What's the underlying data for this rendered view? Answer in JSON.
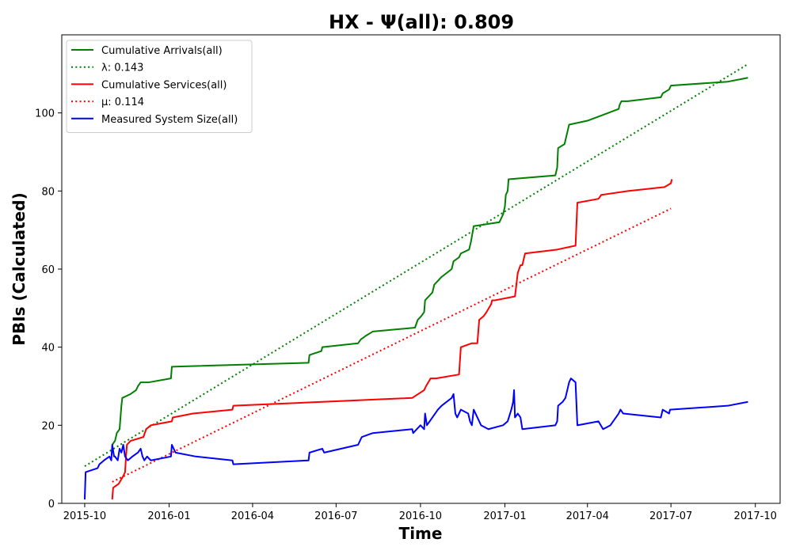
{
  "chart_data": {
    "type": "line",
    "title": "HX -  Ψ(all): 0.809",
    "xlabel": "Time",
    "ylabel": "PBIs (Calculated)",
    "xlim": [
      "2015-09-06",
      "2017-10-28"
    ],
    "ylim": [
      0,
      120
    ],
    "x_ticks": [
      "2015-10",
      "2016-01",
      "2016-04",
      "2016-07",
      "2016-10",
      "2017-01",
      "2017-04",
      "2017-07",
      "2017-10"
    ],
    "y_ticks": [
      0,
      20,
      40,
      60,
      80,
      100
    ],
    "grid": false,
    "legend_position": "top-left",
    "series": [
      {
        "name": "Cumulative Arrivals(all)",
        "color": "#008000",
        "style": "solid",
        "points": [
          [
            "2015-10-31",
            15
          ],
          [
            "2015-11-03",
            16
          ],
          [
            "2015-11-05",
            18
          ],
          [
            "2015-11-08",
            19
          ],
          [
            "2015-11-09",
            22
          ],
          [
            "2015-11-10",
            25
          ],
          [
            "2015-11-11",
            27
          ],
          [
            "2015-11-20",
            28
          ],
          [
            "2015-11-26",
            29
          ],
          [
            "2015-11-28",
            30
          ],
          [
            "2015-12-01",
            31
          ],
          [
            "2015-12-10",
            31
          ],
          [
            "2016-01-03",
            32
          ],
          [
            "2016-01-04",
            35
          ],
          [
            "2016-06-01",
            36
          ],
          [
            "2016-06-02",
            38
          ],
          [
            "2016-06-15",
            39
          ],
          [
            "2016-06-16",
            40
          ],
          [
            "2016-07-25",
            41
          ],
          [
            "2016-07-28",
            42
          ],
          [
            "2016-08-03",
            43
          ],
          [
            "2016-08-10",
            44
          ],
          [
            "2016-09-25",
            45
          ],
          [
            "2016-09-28",
            47
          ],
          [
            "2016-10-02",
            48
          ],
          [
            "2016-10-05",
            49
          ],
          [
            "2016-10-06",
            52
          ],
          [
            "2016-10-14",
            54
          ],
          [
            "2016-10-16",
            56
          ],
          [
            "2016-10-20",
            57
          ],
          [
            "2016-10-24",
            58
          ],
          [
            "2016-11-04",
            60
          ],
          [
            "2016-11-06",
            62
          ],
          [
            "2016-11-12",
            63
          ],
          [
            "2016-11-14",
            64
          ],
          [
            "2016-11-23",
            65
          ],
          [
            "2016-11-25",
            67
          ],
          [
            "2016-11-28",
            71
          ],
          [
            "2016-12-26",
            72
          ],
          [
            "2016-12-30",
            74
          ],
          [
            "2017-01-01",
            76
          ],
          [
            "2017-01-02",
            79
          ],
          [
            "2017-01-04",
            80
          ],
          [
            "2017-01-05",
            83
          ],
          [
            "2017-02-25",
            84
          ],
          [
            "2017-02-27",
            86
          ],
          [
            "2017-02-28",
            91
          ],
          [
            "2017-03-07",
            92
          ],
          [
            "2017-03-09",
            94
          ],
          [
            "2017-03-10",
            95
          ],
          [
            "2017-03-12",
            97
          ],
          [
            "2017-04-01",
            98
          ],
          [
            "2017-05-05",
            101
          ],
          [
            "2017-05-06",
            102
          ],
          [
            "2017-05-08",
            103
          ],
          [
            "2017-05-15",
            103
          ],
          [
            "2017-06-20",
            104
          ],
          [
            "2017-06-22",
            105
          ],
          [
            "2017-06-29",
            106
          ],
          [
            "2017-07-01",
            107
          ],
          [
            "2017-09-01",
            108
          ],
          [
            "2017-09-23",
            109
          ]
        ]
      },
      {
        "name": "λ: 0.143",
        "color": "#008000",
        "style": "dotted",
        "points": [
          [
            "2015-10-01",
            9.5
          ],
          [
            "2017-09-23",
            112.5
          ]
        ]
      },
      {
        "name": "Cumulative Services(all)",
        "color": "#ff0000",
        "style": "solid",
        "points": [
          [
            "2015-10-31",
            1
          ],
          [
            "2015-11-01",
            4
          ],
          [
            "2015-11-07",
            5
          ],
          [
            "2015-11-12",
            7
          ],
          [
            "2015-11-14",
            8
          ],
          [
            "2015-11-15",
            12
          ],
          [
            "2015-11-16",
            15
          ],
          [
            "2015-11-20",
            16
          ],
          [
            "2015-12-04",
            17
          ],
          [
            "2015-12-07",
            19
          ],
          [
            "2015-12-12",
            20
          ],
          [
            "2016-01-04",
            21
          ],
          [
            "2016-01-05",
            22
          ],
          [
            "2016-01-27",
            23
          ],
          [
            "2016-03-10",
            24
          ],
          [
            "2016-03-11",
            25
          ],
          [
            "2016-09-22",
            27
          ],
          [
            "2016-10-05",
            29
          ],
          [
            "2016-10-07",
            30
          ],
          [
            "2016-10-12",
            32
          ],
          [
            "2016-10-18",
            32
          ],
          [
            "2016-11-12",
            33
          ],
          [
            "2016-11-14",
            40
          ],
          [
            "2016-11-26",
            41
          ],
          [
            "2016-12-02",
            41
          ],
          [
            "2016-12-04",
            47
          ],
          [
            "2016-12-09",
            48
          ],
          [
            "2016-12-12",
            49
          ],
          [
            "2016-12-17",
            51
          ],
          [
            "2016-12-18",
            52
          ],
          [
            "2016-12-21",
            52
          ],
          [
            "2017-01-12",
            53
          ],
          [
            "2017-01-15",
            59
          ],
          [
            "2017-01-18",
            61
          ],
          [
            "2017-01-20",
            61
          ],
          [
            "2017-01-23",
            64
          ],
          [
            "2017-02-27",
            65
          ],
          [
            "2017-03-19",
            66
          ],
          [
            "2017-03-21",
            77
          ],
          [
            "2017-04-13",
            78
          ],
          [
            "2017-04-16",
            79
          ],
          [
            "2017-05-15",
            80
          ],
          [
            "2017-06-24",
            81
          ],
          [
            "2017-07-01",
            82
          ],
          [
            "2017-07-02",
            83
          ]
        ]
      },
      {
        "name": "μ: 0.114",
        "color": "#ff0000",
        "style": "dotted",
        "points": [
          [
            "2015-10-31",
            5.5
          ],
          [
            "2017-07-01",
            75.5
          ]
        ]
      },
      {
        "name": "Measured System Size(all)",
        "color": "#0000ff",
        "style": "solid",
        "points": [
          [
            "2015-10-01",
            1
          ],
          [
            "2015-10-02",
            8
          ],
          [
            "2015-10-15",
            9
          ],
          [
            "2015-10-17",
            10
          ],
          [
            "2015-10-22",
            11
          ],
          [
            "2015-10-28",
            12
          ],
          [
            "2015-10-30",
            11
          ],
          [
            "2015-10-31",
            15
          ],
          [
            "2015-11-02",
            12
          ],
          [
            "2015-11-03",
            12
          ],
          [
            "2015-11-06",
            11
          ],
          [
            "2015-11-08",
            14
          ],
          [
            "2015-11-10",
            13
          ],
          [
            "2015-11-12",
            15
          ],
          [
            "2015-11-14",
            12
          ],
          [
            "2015-11-17",
            11
          ],
          [
            "2015-11-22",
            12
          ],
          [
            "2015-11-28",
            13
          ],
          [
            "2015-12-01",
            14
          ],
          [
            "2015-12-03",
            12
          ],
          [
            "2015-12-05",
            11
          ],
          [
            "2015-12-08",
            12
          ],
          [
            "2015-12-12",
            11
          ],
          [
            "2016-01-03",
            12
          ],
          [
            "2016-01-04",
            15
          ],
          [
            "2016-01-08",
            13
          ],
          [
            "2016-01-30",
            12
          ],
          [
            "2016-03-10",
            11
          ],
          [
            "2016-03-11",
            10
          ],
          [
            "2016-06-01",
            11
          ],
          [
            "2016-06-02",
            13
          ],
          [
            "2016-06-16",
            14
          ],
          [
            "2016-06-18",
            13
          ],
          [
            "2016-07-25",
            15
          ],
          [
            "2016-07-29",
            17
          ],
          [
            "2016-08-10",
            18
          ],
          [
            "2016-09-22",
            19
          ],
          [
            "2016-09-23",
            18
          ],
          [
            "2016-10-01",
            20
          ],
          [
            "2016-10-05",
            19
          ],
          [
            "2016-10-06",
            23
          ],
          [
            "2016-10-08",
            20
          ],
          [
            "2016-10-14",
            22
          ],
          [
            "2016-10-20",
            24
          ],
          [
            "2016-10-24",
            25
          ],
          [
            "2016-11-04",
            27
          ],
          [
            "2016-11-06",
            28
          ],
          [
            "2016-11-08",
            23
          ],
          [
            "2016-11-10",
            22
          ],
          [
            "2016-11-12",
            23
          ],
          [
            "2016-11-14",
            24
          ],
          [
            "2016-11-22",
            23
          ],
          [
            "2016-11-24",
            21
          ],
          [
            "2016-11-26",
            20
          ],
          [
            "2016-11-28",
            24
          ],
          [
            "2016-12-02",
            22
          ],
          [
            "2016-12-06",
            20
          ],
          [
            "2016-12-14",
            19
          ],
          [
            "2016-12-30",
            20
          ],
          [
            "2017-01-04",
            21
          ],
          [
            "2017-01-08",
            24
          ],
          [
            "2017-01-10",
            26
          ],
          [
            "2017-01-11",
            29
          ],
          [
            "2017-01-12",
            22
          ],
          [
            "2017-01-15",
            23
          ],
          [
            "2017-01-18",
            22
          ],
          [
            "2017-01-20",
            19
          ],
          [
            "2017-02-25",
            20
          ],
          [
            "2017-02-27",
            21
          ],
          [
            "2017-02-28",
            25
          ],
          [
            "2017-03-05",
            26
          ],
          [
            "2017-03-08",
            27
          ],
          [
            "2017-03-12",
            31
          ],
          [
            "2017-03-14",
            32
          ],
          [
            "2017-03-19",
            31
          ],
          [
            "2017-03-21",
            20
          ],
          [
            "2017-04-13",
            21
          ],
          [
            "2017-04-18",
            19
          ],
          [
            "2017-04-26",
            20
          ],
          [
            "2017-05-05",
            23
          ],
          [
            "2017-05-07",
            24
          ],
          [
            "2017-05-10",
            23
          ],
          [
            "2017-06-20",
            22
          ],
          [
            "2017-06-22",
            24
          ],
          [
            "2017-06-29",
            23
          ],
          [
            "2017-06-30",
            24
          ],
          [
            "2017-09-01",
            25
          ],
          [
            "2017-09-23",
            26
          ]
        ]
      }
    ]
  }
}
